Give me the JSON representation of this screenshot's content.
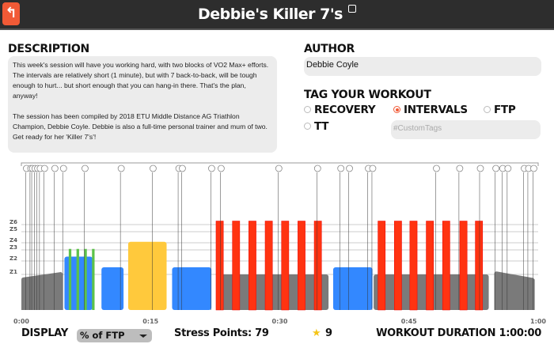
{
  "header": {
    "title": "Debbie's Killer 7's",
    "back_icon": "back-arrow-icon",
    "edit_icon": "edit-icon"
  },
  "description": {
    "heading": "DESCRIPTION",
    "para1": "This week's session will have you working hard, with two blocks of VO2 Max+ efforts. The intervals are relatively short (1 minute), but with 7 back-to-back, will be tough enough to hurt... but short enough that you can hang-in there. That's the plan, anyway!",
    "para2": "The session has been compiled by 2018 ETU Middle Distance AG Triathlon Champion, Debbie Coyle. Debbie is also a full-time personal trainer and mum of two. Get ready for her 'Killer 7's'!"
  },
  "author": {
    "heading": "AUTHOR",
    "value": "Debbie Coyle"
  },
  "tags": {
    "heading": "TAG YOUR WORKOUT",
    "options": [
      {
        "label": "RECOVERY",
        "selected": false
      },
      {
        "label": "INTERVALS",
        "selected": true
      },
      {
        "label": "FTP",
        "selected": false
      },
      {
        "label": "TT",
        "selected": false
      }
    ],
    "custom_placeholder": "#CustomTags",
    "accent": "#f15a36"
  },
  "chart_data": {
    "type": "bar",
    "xlabel": "",
    "ylabel": "",
    "xlim_minutes": [
      0,
      60
    ],
    "x_ticks": [
      "0:00",
      "0:15",
      "0:30",
      "0:45",
      "1:00"
    ],
    "zones": [
      "Z1",
      "Z2",
      "Z3",
      "Z4",
      "Z5",
      "Z6"
    ],
    "colors": {
      "gray": "#7a7a7a",
      "blue": "#3388ff",
      "green": "#5cc24a",
      "yellow": "#ffc93c",
      "red": "#ff3311"
    },
    "segments": [
      {
        "start": 0,
        "end": 4.8,
        "power_start": 55,
        "power_end": 64,
        "color": "gray"
      },
      {
        "start": 5.0,
        "end": 8.4,
        "power": 90,
        "color": "blue"
      },
      {
        "start": 9.3,
        "end": 12.0,
        "power": 72,
        "color": "blue"
      },
      {
        "start": 12.4,
        "end": 17.0,
        "power": 115,
        "color": "yellow"
      },
      {
        "start": 17.5,
        "end": 22.2,
        "power": 72,
        "color": "blue"
      },
      {
        "start": 22.6,
        "end": 35.8,
        "power": 60,
        "color": "gray"
      },
      {
        "start": 36.2,
        "end": 40.9,
        "power": 72,
        "color": "blue"
      },
      {
        "start": 40.9,
        "end": 54.4,
        "power": 60,
        "color": "gray"
      },
      {
        "start": 54.9,
        "end": 59.6,
        "power_start": 65,
        "power_end": 54,
        "color": "gray"
      }
    ],
    "overlays": [
      {
        "starts": [
          5.5,
          6.4,
          7.3,
          8.2
        ],
        "duration": 0.3,
        "power": 103,
        "color": "green"
      },
      {
        "starts": [
          22.6,
          24.5,
          26.4,
          28.3,
          30.2,
          32.1,
          34.0
        ],
        "duration": 0.85,
        "power": 150,
        "color": "red"
      },
      {
        "starts": [
          41.4,
          43.3,
          45.1,
          47.0,
          48.9,
          50.9,
          52.7
        ],
        "duration": 0.85,
        "power": 150,
        "color": "red"
      }
    ],
    "text_markers_minutes": [
      0.5,
      1.0,
      1.2,
      1.5,
      1.8,
      2.1,
      2.6,
      3.8,
      4.8,
      7.3,
      11.5,
      15.2,
      18.2,
      18.6,
      22.0,
      23.1,
      29.8,
      34.3,
      37.0,
      38.0,
      40.2,
      40.7,
      48.1,
      50.8,
      53.2,
      55.0,
      55.8,
      56.4,
      58.3,
      58.8,
      59.4
    ]
  },
  "footer": {
    "display_label": "DISPLAY",
    "display_value": "% of FTP",
    "stress_points": "Stress Points: 79",
    "star_icon": "star-icon",
    "star_count": "9",
    "duration_label": "WORKOUT DURATION 1:00:00"
  }
}
